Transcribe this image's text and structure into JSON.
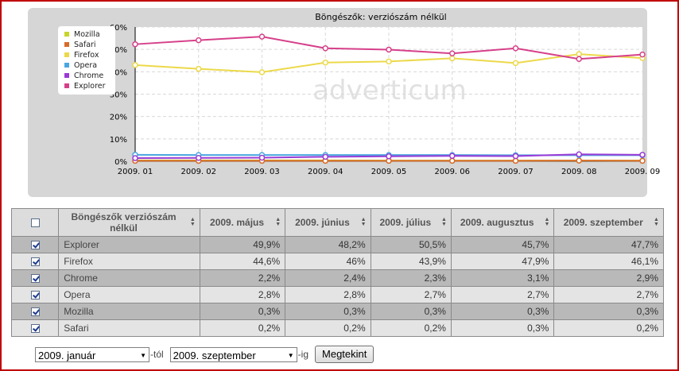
{
  "chart_data": {
    "type": "line",
    "title": "Böngészők: verziószám nélkül",
    "watermark": "adverticum",
    "categories": [
      "2009. 01",
      "2009. 02",
      "2009. 03",
      "2009. 04",
      "2009. 05",
      "2009. 06",
      "2009. 07",
      "2009. 08",
      "2009. 09"
    ],
    "y_ticks": [
      "0%",
      "10%",
      "20%",
      "30%",
      "40%",
      "50%",
      "60%"
    ],
    "ylim": [
      0,
      60
    ],
    "grid": true,
    "legend_position": "top-left",
    "series": [
      {
        "name": "Mozilla",
        "color": "#c8d42a",
        "values": [
          0.4,
          0.4,
          0.4,
          0.4,
          0.3,
          0.3,
          0.3,
          0.3,
          0.3
        ]
      },
      {
        "name": "Safari",
        "color": "#d86b2a",
        "values": [
          0.2,
          0.2,
          0.2,
          0.2,
          0.2,
          0.2,
          0.2,
          0.3,
          0.2
        ]
      },
      {
        "name": "Firefox",
        "color": "#ecd94a",
        "values": [
          43.0,
          41.3,
          39.8,
          44.1,
          44.6,
          46.0,
          43.9,
          47.9,
          46.1
        ]
      },
      {
        "name": "Opera",
        "color": "#4aa6e0",
        "values": [
          2.9,
          2.8,
          2.8,
          2.8,
          2.8,
          2.8,
          2.7,
          2.7,
          2.7
        ]
      },
      {
        "name": "Chrome",
        "color": "#9a3bd6",
        "values": [
          1.4,
          1.5,
          1.6,
          2.0,
          2.2,
          2.4,
          2.3,
          3.1,
          2.9
        ]
      },
      {
        "name": "Explorer",
        "color": "#d6408a",
        "values": [
          52.3,
          54.1,
          55.7,
          50.5,
          49.9,
          48.2,
          50.5,
          45.7,
          47.7
        ]
      }
    ]
  },
  "table": {
    "header": {
      "name": "Böngészők verziószám nélkül",
      "cols": [
        "2009. május",
        "2009. június",
        "2009. július",
        "2009. augusztus",
        "2009. szeptember"
      ]
    },
    "rows": [
      {
        "name": "Explorer",
        "values": [
          "49,9%",
          "48,2%",
          "50,5%",
          "45,7%",
          "47,7%"
        ]
      },
      {
        "name": "Firefox",
        "values": [
          "44,6%",
          "46%",
          "43,9%",
          "47,9%",
          "46,1%"
        ]
      },
      {
        "name": "Chrome",
        "values": [
          "2,2%",
          "2,4%",
          "2,3%",
          "3,1%",
          "2,9%"
        ]
      },
      {
        "name": "Opera",
        "values": [
          "2,8%",
          "2,8%",
          "2,7%",
          "2,7%",
          "2,7%"
        ]
      },
      {
        "name": "Mozilla",
        "values": [
          "0,3%",
          "0,3%",
          "0,3%",
          "0,3%",
          "0,3%"
        ]
      },
      {
        "name": "Safari",
        "values": [
          "0,2%",
          "0,2%",
          "0,2%",
          "0,3%",
          "0,2%"
        ]
      }
    ]
  },
  "controls": {
    "from_value": "2009. január",
    "from_suffix": "-tól",
    "to_value": "2009. szeptember",
    "to_suffix": "-ig",
    "submit_label": "Megtekint"
  }
}
